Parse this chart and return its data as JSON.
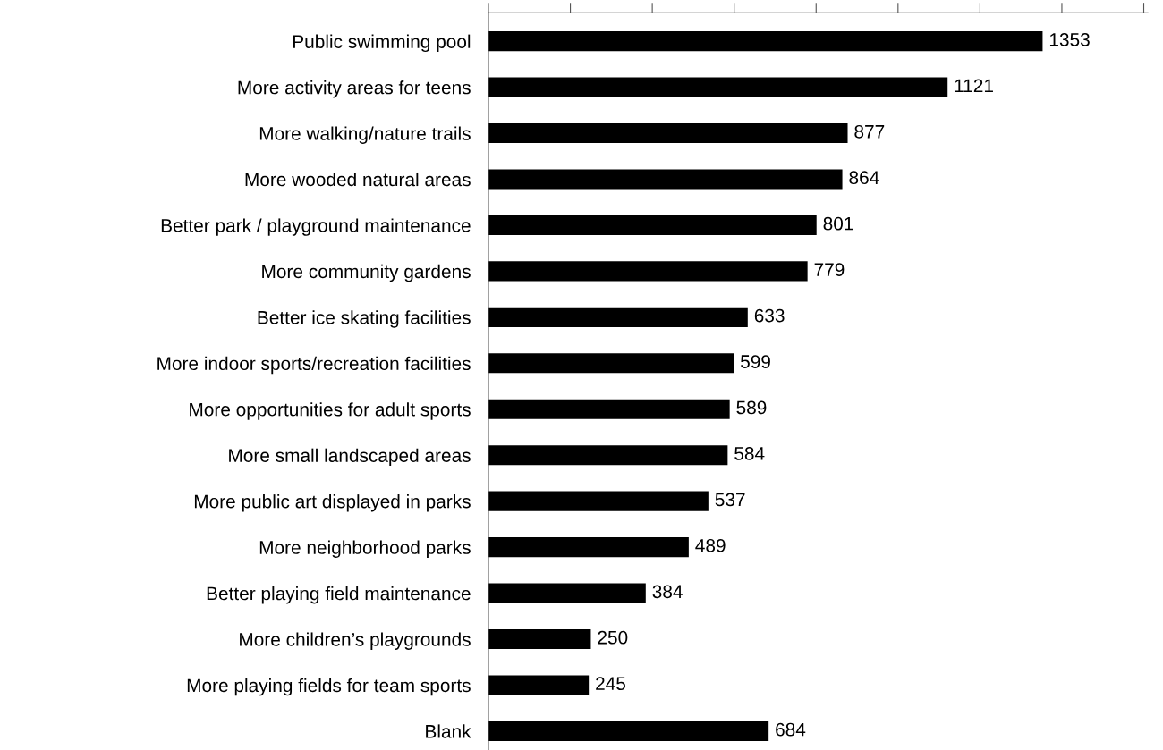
{
  "chart_data": {
    "type": "bar",
    "orientation": "horizontal",
    "categories": [
      "Public swimming pool",
      "More activity areas for teens",
      "More walking/nature trails",
      "More wooded natural areas",
      "Better park / playground maintenance",
      "More community gardens",
      "Better ice skating facilities",
      "More indoor sports/recreation facilities",
      "More opportunities for adult sports",
      "More small landscaped areas",
      "More public art displayed in parks",
      "More neighborhood parks",
      "Better playing field maintenance",
      "More children’s playgrounds",
      "More playing fields for team sports",
      "Blank"
    ],
    "values": [
      1353,
      1121,
      877,
      864,
      801,
      779,
      633,
      599,
      589,
      584,
      537,
      489,
      384,
      250,
      245,
      684
    ],
    "color": "#000000",
    "data_labels": true,
    "xlim": [
      0,
      1610
    ],
    "xticks": [
      {
        "value": 0,
        "label": null
      },
      {
        "value": 200,
        "label": null
      },
      {
        "value": 400,
        "label": null
      },
      {
        "value": 600,
        "label": null
      },
      {
        "value": 800,
        "label": null
      },
      {
        "value": 1000,
        "label": null
      },
      {
        "value": 1200,
        "label": null
      },
      {
        "value": 1400,
        "label": null
      },
      {
        "value": 1600,
        "label": null
      }
    ],
    "tick_labels": "y",
    "grid": false
  }
}
